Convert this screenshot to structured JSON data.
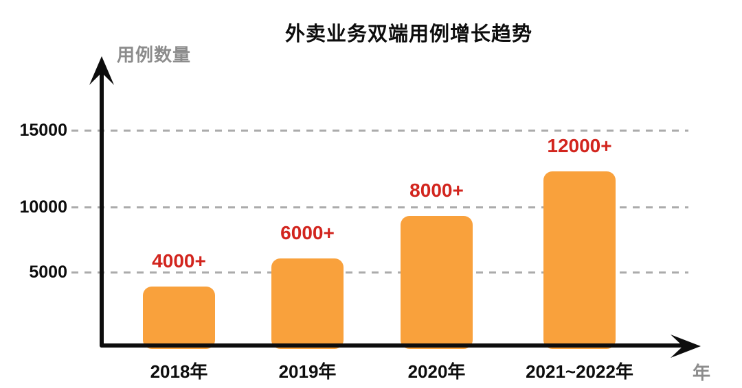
{
  "title": "外卖业务双端用例增长趋势",
  "chart_data": {
    "type": "bar",
    "title": "外卖业务双端用例增长趋势",
    "ylabel": "用例数量",
    "xlabel": "年",
    "categories": [
      "2018年",
      "2019年",
      "2020年",
      "2021~2022年"
    ],
    "values": [
      4000,
      6000,
      8000,
      12000
    ],
    "value_labels": [
      "4000+",
      "6000+",
      "8000+",
      "12000+"
    ],
    "yticks": [
      5000,
      10000,
      15000
    ],
    "ylim": [
      0,
      19000
    ],
    "grid": "dashed-horizontal",
    "legend": "none",
    "colors": {
      "bar": "#f9a13c",
      "value_label": "#d2251e",
      "axis": "#0d0d0d",
      "grid": "#ababab",
      "axis_title_gray": "#8c8c8c"
    }
  }
}
